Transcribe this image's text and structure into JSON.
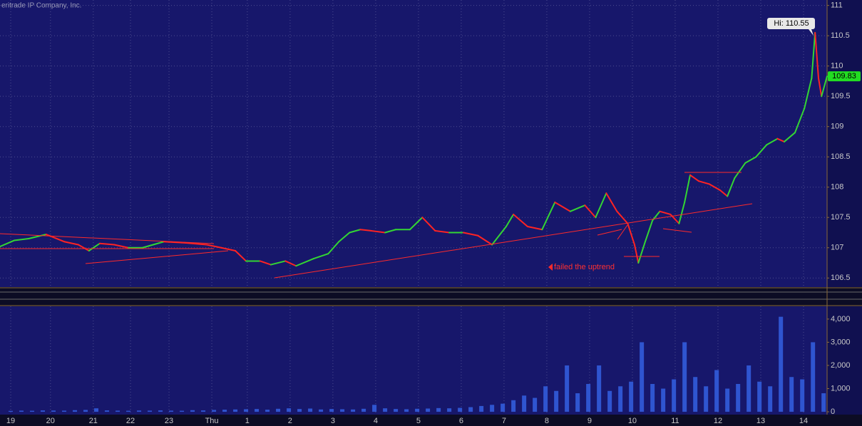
{
  "chart_data": [
    {
      "type": "line",
      "title": "eritrade IP Company, Inc.",
      "hi_label": "Hi: 110.55",
      "last_label": "109.83",
      "annotation": "failed the uptrend",
      "xlim": [
        -0.25,
        19.08
      ],
      "ylim": [
        106.35,
        111.09
      ],
      "yticks": [
        106.5,
        107,
        107.5,
        108,
        108.5,
        109,
        109.5,
        110,
        110.5,
        111
      ],
      "grid": true,
      "up_color": "#33d633",
      "down_color": "#ff2323",
      "series": [
        {
          "name": "Price",
          "x": [
            -0.25,
            0.08,
            0.42,
            0.83,
            1.25,
            1.58,
            1.83,
            2.08,
            2.42,
            2.75,
            3.08,
            3.33,
            3.58,
            4.08,
            4.58,
            4.92,
            5.25,
            5.5,
            5.83,
            6.08,
            6.42,
            6.67,
            7.08,
            7.42,
            7.67,
            7.92,
            8.17,
            8.42,
            8.75,
            9.0,
            9.33,
            9.62,
            9.92,
            10.25,
            10.58,
            10.92,
            11.25,
            11.58,
            11.75,
            12.08,
            12.42,
            12.72,
            13.08,
            13.42,
            13.67,
            13.92,
            14.17,
            14.42,
            14.58,
            14.67,
            14.83,
            15.0,
            15.17,
            15.42,
            15.62,
            15.75,
            15.88,
            16.08,
            16.33,
            16.58,
            16.75,
            16.92,
            17.17,
            17.42,
            17.67,
            17.92,
            18.08,
            18.33,
            18.55,
            18.72,
            18.8,
            18.88,
            18.95,
            19.08
          ],
          "values": [
            107.02,
            107.12,
            107.15,
            107.22,
            107.1,
            107.05,
            106.95,
            107.07,
            107.05,
            107.0,
            107.0,
            107.05,
            107.1,
            107.08,
            107.05,
            107.0,
            106.95,
            106.78,
            106.78,
            106.72,
            106.78,
            106.7,
            106.82,
            106.9,
            107.1,
            107.25,
            107.3,
            107.28,
            107.25,
            107.3,
            107.3,
            107.5,
            107.28,
            107.25,
            107.25,
            107.2,
            107.05,
            107.35,
            107.55,
            107.35,
            107.3,
            107.75,
            107.6,
            107.7,
            107.5,
            107.9,
            107.6,
            107.4,
            107.05,
            106.75,
            107.1,
            107.45,
            107.6,
            107.55,
            107.4,
            107.75,
            108.2,
            108.1,
            108.05,
            107.95,
            107.85,
            108.15,
            108.4,
            108.5,
            108.7,
            108.8,
            108.75,
            108.9,
            109.3,
            109.8,
            110.55,
            109.8,
            109.5,
            109.83
          ]
        }
      ]
    },
    {
      "type": "bar",
      "xlim": [
        -0.25,
        19.08
      ],
      "ylim": [
        -60,
        4550
      ],
      "yticks": [
        0,
        {
          "value": 1000,
          "label": "1,000"
        },
        {
          "value": 2000,
          "label": "2,000"
        },
        {
          "value": 3000,
          "label": "3,000"
        },
        {
          "value": 4000,
          "label": "4,000"
        }
      ],
      "xticks": [
        {
          "value": 0,
          "label": "19"
        },
        {
          "value": 0.93,
          "label": "20"
        },
        {
          "value": 1.93,
          "label": "21"
        },
        {
          "value": 2.8,
          "label": "22"
        },
        {
          "value": 3.7,
          "label": "23"
        },
        {
          "value": 4.7,
          "label": "Thu"
        },
        {
          "value": 5.53,
          "label": "1"
        },
        {
          "value": 6.53,
          "label": "2"
        },
        {
          "value": 7.53,
          "label": "3"
        },
        {
          "value": 8.53,
          "label": "4"
        },
        {
          "value": 9.53,
          "label": "5"
        },
        {
          "value": 10.53,
          "label": "6"
        },
        {
          "value": 11.53,
          "label": "7"
        },
        {
          "value": 12.53,
          "label": "8"
        },
        {
          "value": 13.53,
          "label": "9"
        },
        {
          "value": 14.53,
          "label": "10"
        },
        {
          "value": 15.53,
          "label": "11"
        },
        {
          "value": 16.53,
          "label": "12"
        },
        {
          "value": 17.53,
          "label": "13"
        },
        {
          "value": 18.53,
          "label": "14"
        }
      ],
      "color": "#2f55d0",
      "series": [
        {
          "name": "Volume",
          "x": [
            0,
            0.25,
            0.5,
            0.75,
            1,
            1.25,
            1.5,
            1.75,
            2,
            2.25,
            2.5,
            2.75,
            3,
            3.25,
            3.5,
            3.75,
            4,
            4.25,
            4.5,
            4.75,
            5,
            5.25,
            5.5,
            5.75,
            6,
            6.25,
            6.5,
            6.75,
            7,
            7.25,
            7.5,
            7.75,
            8,
            8.25,
            8.5,
            8.75,
            9,
            9.25,
            9.5,
            9.75,
            10,
            10.25,
            10.5,
            10.75,
            11,
            11.25,
            11.5,
            11.75,
            12,
            12.25,
            12.5,
            12.75,
            13,
            13.25,
            13.5,
            13.75,
            14,
            14.25,
            14.5,
            14.75,
            15,
            15.25,
            15.5,
            15.75,
            16,
            16.25,
            16.5,
            16.75,
            17,
            17.25,
            17.5,
            17.75,
            18,
            18.25,
            18.5,
            18.75,
            19
          ],
          "values": [
            40,
            50,
            45,
            60,
            55,
            50,
            70,
            80,
            150,
            60,
            50,
            45,
            55,
            50,
            60,
            50,
            45,
            70,
            60,
            80,
            90,
            100,
            110,
            120,
            90,
            130,
            150,
            120,
            140,
            100,
            120,
            110,
            100,
            130,
            300,
            150,
            120,
            110,
            130,
            140,
            160,
            150,
            170,
            200,
            250,
            300,
            350,
            500,
            700,
            600,
            1100,
            900,
            2000,
            800,
            1200,
            2000,
            900,
            1100,
            1300,
            3000,
            1200,
            1000,
            1400,
            3000,
            1500,
            1100,
            1800,
            1000,
            1200,
            2000,
            1300,
            1100,
            4100,
            1500,
            1400,
            3000,
            800
          ]
        }
      ]
    }
  ]
}
